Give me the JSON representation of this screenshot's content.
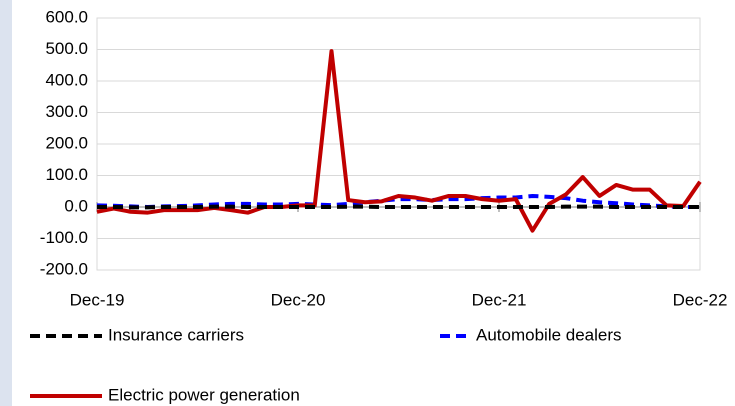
{
  "chart_data": {
    "type": "line",
    "categories": [
      "Dec-19",
      null,
      null,
      null,
      null,
      null,
      null,
      null,
      null,
      null,
      null,
      null,
      "Dec-20",
      null,
      null,
      null,
      null,
      null,
      null,
      null,
      null,
      null,
      null,
      null,
      "Dec-21",
      null,
      null,
      null,
      null,
      null,
      null,
      null,
      null,
      null,
      null,
      null,
      "Dec-22"
    ],
    "series": [
      {
        "name": "Insurance carriers",
        "color": "#000000",
        "dash": "dashed",
        "values": [
          0,
          0,
          -1,
          -1,
          0,
          0,
          0,
          1,
          1,
          0,
          0,
          0,
          0,
          0,
          0,
          1,
          1,
          0,
          0,
          0,
          0,
          0,
          0,
          0,
          0,
          0,
          0,
          0,
          1,
          1,
          1,
          0,
          0,
          0,
          0,
          0,
          0
        ]
      },
      {
        "name": "Automobile dealers",
        "color": "#0000ff",
        "dash": "dashed",
        "values": [
          5,
          4,
          2,
          0,
          2,
          3,
          5,
          8,
          10,
          10,
          8,
          8,
          10,
          8,
          6,
          10,
          15,
          20,
          25,
          25,
          22,
          25,
          25,
          28,
          30,
          30,
          35,
          32,
          28,
          20,
          15,
          12,
          8,
          5,
          2,
          0,
          0
        ]
      },
      {
        "name": "Electric power generation",
        "color": "#c00000",
        "dash": "solid",
        "values": [
          -15,
          -5,
          -15,
          -18,
          -10,
          -10,
          -10,
          -3,
          -10,
          -18,
          0,
          0,
          5,
          5,
          495,
          22,
          15,
          18,
          35,
          30,
          20,
          35,
          35,
          25,
          20,
          25,
          -75,
          10,
          40,
          95,
          35,
          70,
          55,
          55,
          5,
          3,
          80
        ]
      }
    ],
    "ylim": [
      -200,
      600
    ],
    "yticks": [
      {
        "value": -200,
        "label": "-200.0"
      },
      {
        "value": -100,
        "label": "-100.0"
      },
      {
        "value": 0,
        "label": "0.0"
      },
      {
        "value": 100,
        "label": "100.0"
      },
      {
        "value": 200,
        "label": "200.0"
      },
      {
        "value": 300,
        "label": "300.0"
      },
      {
        "value": 400,
        "label": "400.0"
      },
      {
        "value": 500,
        "label": "500.0"
      },
      {
        "value": 600,
        "label": "600.0"
      }
    ],
    "grid": true
  }
}
